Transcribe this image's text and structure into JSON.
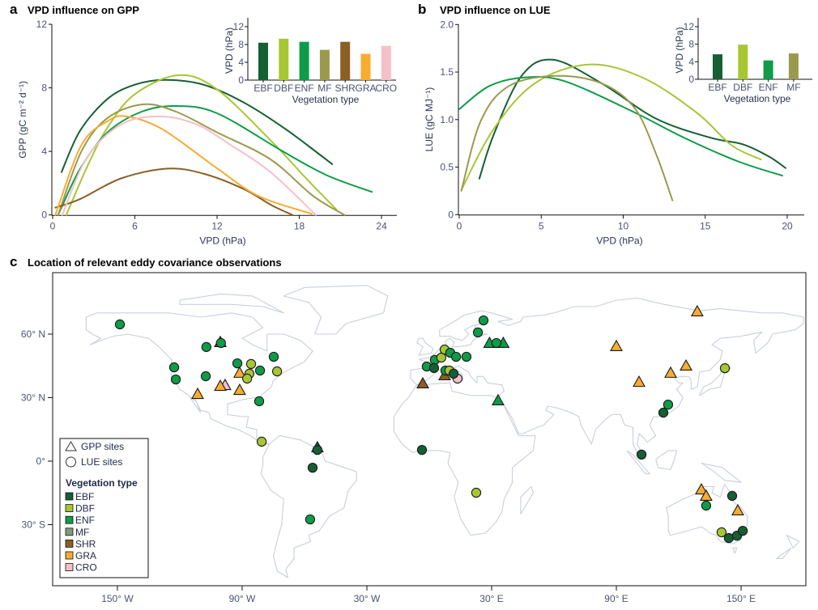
{
  "panels": {
    "a": {
      "letter": "a",
      "title": "VPD influence on GPP"
    },
    "b": {
      "letter": "b",
      "title": "VPD influence on LUE"
    },
    "c": {
      "letter": "c",
      "title": "Location of relevant eddy covariance observations"
    }
  },
  "colors": {
    "EBF": "#165f33",
    "DBF": "#a8c634",
    "ENF": "#0e9c48",
    "MF": "#9a9a4e",
    "SHR": "#8b5e24",
    "GRA": "#f7ac32",
    "CRO": "#f6c0c9",
    "MF_legend": "#7f9c7c"
  },
  "chart_data": [
    {
      "id": "gpp_curves",
      "type": "line",
      "xlabel": "VPD (hPa)",
      "ylabel": "GPP (gC m⁻² d⁻¹)",
      "xlim": [
        0,
        25
      ],
      "ylim": [
        0,
        12
      ],
      "xticks": [
        0,
        6,
        12,
        18,
        24
      ],
      "yticks": [
        0,
        4,
        8,
        12
      ],
      "series": [
        {
          "name": "EBF",
          "x": [
            0.65,
            2,
            4,
            6,
            8.2,
            11,
            13.9,
            17,
            20.4
          ],
          "y": [
            2.7,
            5.3,
            7.3,
            8.2,
            8.5,
            8.2,
            7.1,
            5.4,
            3.2
          ]
        },
        {
          "name": "DBF",
          "x": [
            1.0,
            2.5,
            4,
            6,
            9.2,
            12,
            15.9,
            18.5,
            20.7
          ],
          "y": [
            0,
            3.0,
            5.5,
            7.6,
            8.8,
            7.9,
            4.7,
            2.3,
            0.35
          ]
        },
        {
          "name": "ENF",
          "x": [
            0.4,
            2,
            4,
            6.5,
            9.0,
            12,
            16.8,
            20,
            23.3
          ],
          "y": [
            0,
            2.9,
            5.2,
            6.5,
            6.86,
            6.4,
            4.0,
            2.5,
            1.45
          ]
        },
        {
          "name": "MF",
          "x": [
            0.4,
            2.1,
            4,
            6.6,
            9,
            12,
            15.9,
            19,
            21.3
          ],
          "y": [
            0,
            4.0,
            6.1,
            6.96,
            6.5,
            5.2,
            3.5,
            1.2,
            0
          ]
        },
        {
          "name": "SHR",
          "x": [
            0.2,
            2,
            5,
            8.4,
            11,
            13.9,
            16,
            17.5
          ],
          "y": [
            0.46,
            1.0,
            2.3,
            2.92,
            2.6,
            1.65,
            0.6,
            0
          ]
        },
        {
          "name": "GRA",
          "x": [
            0.2,
            2.1,
            4,
            5.4,
            8,
            11.9,
            15,
            18.9
          ],
          "y": [
            0,
            4.4,
            5.9,
            6.2,
            5.4,
            3.0,
            1.2,
            0.07
          ]
        },
        {
          "name": "CRO",
          "x": [
            0.7,
            2.5,
            5,
            7.8,
            10.5,
            13,
            15.9,
            19.2
          ],
          "y": [
            0,
            3.6,
            5.7,
            6.2,
            5.7,
            4.4,
            2.7,
            0
          ]
        }
      ]
    },
    {
      "id": "gpp_inset",
      "type": "bar",
      "xlabel": "Vegetation type",
      "ylabel": "VPD (hPa)",
      "ylim": [
        0,
        14
      ],
      "yticks": [
        0,
        4,
        8,
        12
      ],
      "categories": [
        "EBF",
        "DBF",
        "ENF",
        "MF",
        "SHR",
        "GRA",
        "CRO"
      ],
      "values": [
        8.4,
        9.3,
        8.6,
        6.8,
        8.6,
        5.9,
        7.7
      ]
    },
    {
      "id": "lue_curves",
      "type": "line",
      "xlabel": "VPD (hPa)",
      "ylabel": "LUE (gC MJ⁻¹)",
      "xlim": [
        0,
        21
      ],
      "ylim": [
        0,
        2.0
      ],
      "xticks": [
        0,
        5,
        10,
        15,
        20
      ],
      "yticks": [
        0,
        0.5,
        1.0,
        1.5,
        2.0
      ],
      "ytick_labels": [
        "0",
        "0.5",
        "1.0",
        "1.5",
        "2.0"
      ],
      "series": [
        {
          "name": "EBF",
          "x": [
            1.23,
            2.1,
            3.8,
            5.7,
            8.7,
            12.0,
            15.3,
            17.3,
            18.9,
            19.9
          ],
          "y": [
            0.38,
            0.84,
            1.46,
            1.63,
            1.38,
            1.01,
            0.81,
            0.74,
            0.61,
            0.49
          ]
        },
        {
          "name": "DBF",
          "x": [
            0.13,
            2.1,
            4.6,
            7.9,
            11.2,
            14.5,
            16.6,
            18.4
          ],
          "y": [
            0.26,
            0.9,
            1.38,
            1.58,
            1.44,
            1.07,
            0.73,
            0.58
          ]
        },
        {
          "name": "ENF",
          "x": [
            0,
            1.8,
            3.8,
            6.3,
            10.4,
            13.7,
            17,
            19.7
          ],
          "y": [
            1.11,
            1.35,
            1.44,
            1.41,
            1.1,
            0.81,
            0.56,
            0.41
          ]
        },
        {
          "name": "MF",
          "x": [
            0.13,
            1.3,
            3,
            5.9,
            8.7,
            10.7,
            12,
            13
          ],
          "y": [
            0.25,
            0.98,
            1.35,
            1.46,
            1.38,
            1.12,
            0.64,
            0.15
          ]
        }
      ]
    },
    {
      "id": "lue_inset",
      "type": "bar",
      "xlabel": "Vegetation type",
      "ylabel": "VPD (hPa)",
      "ylim": [
        0,
        14
      ],
      "yticks": [
        0,
        4,
        8,
        12
      ],
      "categories": [
        "EBF",
        "DBF",
        "ENF",
        "MF"
      ],
      "values": [
        5.7,
        7.9,
        4.3,
        5.9
      ]
    },
    {
      "id": "site_map",
      "type": "scatter",
      "xticks": [
        -150,
        -90,
        -30,
        30,
        90,
        150
      ],
      "xtick_labels": [
        "150° W",
        "90° W",
        "30° W",
        "30° E",
        "90° E",
        "150° E"
      ],
      "yticks": [
        60,
        30,
        0,
        -30
      ],
      "ytick_labels": [
        "60° N",
        "30° N",
        "0°",
        "30° S"
      ],
      "sites": [
        {
          "lon": -148.8,
          "lat": 64.6,
          "veg": "ENF",
          "kind": "LUE"
        },
        {
          "lon": -100.5,
          "lat": 56.2,
          "veg": "SHR",
          "kind": "GPP"
        },
        {
          "lon": -107.2,
          "lat": 53.9,
          "veg": "ENF",
          "kind": "LUE"
        },
        {
          "lon": -100.2,
          "lat": 55.8,
          "veg": "ENF",
          "kind": "LUE"
        },
        {
          "lon": -122.7,
          "lat": 44.3,
          "veg": "ENF",
          "kind": "LUE"
        },
        {
          "lon": -121.9,
          "lat": 38.6,
          "veg": "ENF",
          "kind": "LUE"
        },
        {
          "lon": -107.5,
          "lat": 40.1,
          "veg": "ENF",
          "kind": "LUE"
        },
        {
          "lon": -91.2,
          "lat": 41.7,
          "veg": "GRA",
          "kind": "GPP"
        },
        {
          "lon": -92.3,
          "lat": 46.2,
          "veg": "ENF",
          "kind": "LUE"
        },
        {
          "lon": -85.7,
          "lat": 45.9,
          "veg": "DBF",
          "kind": "LUE"
        },
        {
          "lon": -81.4,
          "lat": 42.8,
          "veg": "ENF",
          "kind": "LUE"
        },
        {
          "lon": -86.5,
          "lat": 41.3,
          "veg": "DBF",
          "kind": "LUE"
        },
        {
          "lon": -87.6,
          "lat": 39.0,
          "veg": "DBF",
          "kind": "LUE"
        },
        {
          "lon": -74.8,
          "lat": 49.3,
          "veg": "ENF",
          "kind": "LUE"
        },
        {
          "lon": -73.2,
          "lat": 42.4,
          "veg": "DBF",
          "kind": "LUE"
        },
        {
          "lon": -81.8,
          "lat": 28.3,
          "veg": "ENF",
          "kind": "LUE"
        },
        {
          "lon": -80.6,
          "lat": 9.2,
          "veg": "DBF",
          "kind": "LUE"
        },
        {
          "lon": -98.2,
          "lat": 35.9,
          "veg": "CRO",
          "kind": "GPP"
        },
        {
          "lon": -100.5,
          "lat": 35.5,
          "veg": "GRA",
          "kind": "GPP"
        },
        {
          "lon": -91.2,
          "lat": 33.6,
          "veg": "GRA",
          "kind": "GPP"
        },
        {
          "lon": -111.4,
          "lat": 31.7,
          "veg": "GRA",
          "kind": "GPP"
        },
        {
          "lon": -53.8,
          "lat": 6.5,
          "veg": "EBF",
          "kind": "GPP"
        },
        {
          "lon": -53.8,
          "lat": 5.3,
          "veg": "EBF",
          "kind": "LUE"
        },
        {
          "lon": -56.1,
          "lat": -3.1,
          "veg": "EBF",
          "kind": "LUE"
        },
        {
          "lon": -57.3,
          "lat": -27.5,
          "veg": "ENF",
          "kind": "LUE"
        },
        {
          "lon": -3.5,
          "lat": 5.3,
          "veg": "EBF",
          "kind": "LUE"
        },
        {
          "lon": 22.6,
          "lat": -14.9,
          "veg": "DBF",
          "kind": "LUE"
        },
        {
          "lon": -3.1,
          "lat": 36.7,
          "veg": "SHR",
          "kind": "GPP"
        },
        {
          "lon": 7.4,
          "lat": 40.5,
          "veg": "SHR",
          "kind": "GPP"
        },
        {
          "lon": 13.6,
          "lat": 39.0,
          "veg": "CRO",
          "kind": "LUE"
        },
        {
          "lon": 2.7,
          "lat": 47.8,
          "veg": "ENF",
          "kind": "LUE"
        },
        {
          "lon": 5.8,
          "lat": 48.9,
          "veg": "DBF",
          "kind": "LUE"
        },
        {
          "lon": 7.4,
          "lat": 52.7,
          "veg": "DBF",
          "kind": "LUE"
        },
        {
          "lon": 10.1,
          "lat": 51.2,
          "veg": "ENF",
          "kind": "LUE"
        },
        {
          "lon": 12.9,
          "lat": 49.3,
          "veg": "ENF",
          "kind": "LUE"
        },
        {
          "lon": 17.9,
          "lat": 49.3,
          "veg": "ENF",
          "kind": "LUE"
        },
        {
          "lon": -1.2,
          "lat": 44.7,
          "veg": "ENF",
          "kind": "LUE"
        },
        {
          "lon": 2.3,
          "lat": 44.0,
          "veg": "EBF",
          "kind": "LUE"
        },
        {
          "lon": 7.8,
          "lat": 42.8,
          "veg": "ENF",
          "kind": "LUE"
        },
        {
          "lon": 9.7,
          "lat": 42.8,
          "veg": "DBF",
          "kind": "LUE"
        },
        {
          "lon": 11.7,
          "lat": 41.3,
          "veg": "EBF",
          "kind": "LUE"
        },
        {
          "lon": 26.1,
          "lat": 66.5,
          "veg": "ENF",
          "kind": "LUE"
        },
        {
          "lon": 23.4,
          "lat": 60.8,
          "veg": "ENF",
          "kind": "LUE"
        },
        {
          "lon": 29.0,
          "lat": 55.8,
          "veg": "ENF",
          "kind": "GPP"
        },
        {
          "lon": 35.6,
          "lat": 55.8,
          "veg": "ENF",
          "kind": "GPP"
        },
        {
          "lon": 32.3,
          "lat": 55.8,
          "veg": "ENF",
          "kind": "LUE"
        },
        {
          "lon": 33.1,
          "lat": 28.7,
          "veg": "ENF",
          "kind": "GPP"
        },
        {
          "lon": 128.9,
          "lat": 70.7,
          "veg": "GRA",
          "kind": "GPP"
        },
        {
          "lon": 90.0,
          "lat": 54.3,
          "veg": "GRA",
          "kind": "GPP"
        },
        {
          "lon": 100.9,
          "lat": 37.4,
          "veg": "GRA",
          "kind": "GPP"
        },
        {
          "lon": 116.1,
          "lat": 41.7,
          "veg": "GRA",
          "kind": "GPP"
        },
        {
          "lon": 123.5,
          "lat": 45.1,
          "veg": "GRA",
          "kind": "GPP"
        },
        {
          "lon": 142.2,
          "lat": 43.9,
          "veg": "DBF",
          "kind": "LUE"
        },
        {
          "lon": 114.9,
          "lat": 26.7,
          "veg": "ENF",
          "kind": "LUE"
        },
        {
          "lon": 112.6,
          "lat": 22.9,
          "veg": "EBF",
          "kind": "LUE"
        },
        {
          "lon": 102.1,
          "lat": 3.1,
          "veg": "EBF",
          "kind": "LUE"
        },
        {
          "lon": 130.9,
          "lat": -13.4,
          "veg": "GRA",
          "kind": "GPP"
        },
        {
          "lon": 133.2,
          "lat": -16.4,
          "veg": "GRA",
          "kind": "GPP"
        },
        {
          "lon": 133.2,
          "lat": -21.0,
          "veg": "ENF",
          "kind": "LUE"
        },
        {
          "lon": 145.7,
          "lat": -16.4,
          "veg": "EBF",
          "kind": "LUE"
        },
        {
          "lon": 148.4,
          "lat": -23.3,
          "veg": "GRA",
          "kind": "GPP"
        },
        {
          "lon": 140.6,
          "lat": -33.6,
          "veg": "DBF",
          "kind": "LUE"
        },
        {
          "lon": 144.1,
          "lat": -36.3,
          "veg": "EBF",
          "kind": "LUE"
        },
        {
          "lon": 148.0,
          "lat": -35.2,
          "veg": "EBF",
          "kind": "LUE"
        },
        {
          "lon": 150.8,
          "lat": -32.9,
          "veg": "EBF",
          "kind": "LUE"
        }
      ]
    }
  ],
  "legend": {
    "gpp_sites": "GPP sites",
    "lue_sites": "LUE sites",
    "heading": "Vegetation type",
    "types": [
      "EBF",
      "DBF",
      "ENF",
      "MF",
      "SHR",
      "GRA",
      "CRO"
    ]
  }
}
